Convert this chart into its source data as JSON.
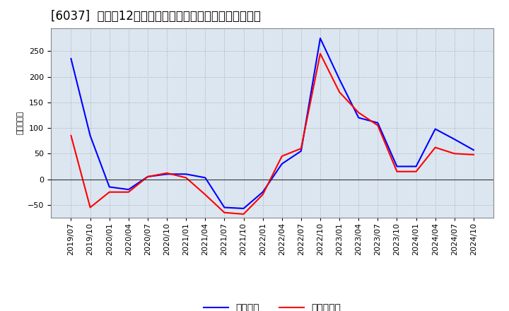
{
  "title": "[6037]  利益だ12か月移動合計の対前年同期増減額の推移",
  "ylabel": "（百万円）",
  "background_color": "#ffffff",
  "plot_background_color": "#dce6f1",
  "x_labels": [
    "2019/07",
    "2019/10",
    "2020/01",
    "2020/04",
    "2020/07",
    "2020/10",
    "2021/01",
    "2021/04",
    "2021/07",
    "2021/10",
    "2022/01",
    "2022/04",
    "2022/07",
    "2022/10",
    "2023/01",
    "2023/04",
    "2023/07",
    "2023/10",
    "2024/01",
    "2024/04",
    "2024/07",
    "2024/10"
  ],
  "operating_profit": [
    235,
    85,
    -15,
    -20,
    5,
    10,
    10,
    3,
    -55,
    -57,
    -25,
    30,
    55,
    275,
    195,
    120,
    110,
    25,
    25,
    98,
    78,
    57
  ],
  "net_profit": [
    85,
    -55,
    -25,
    -25,
    5,
    12,
    3,
    -30,
    -65,
    -68,
    -30,
    45,
    60,
    245,
    170,
    130,
    105,
    15,
    15,
    62,
    50,
    48
  ],
  "line_color_operating": "#0000ff",
  "line_color_net": "#ff0000",
  "ylim": [
    -75,
    295
  ],
  "yticks": [
    -50,
    0,
    50,
    100,
    150,
    200,
    250
  ],
  "grid_color": "#aaaaaa",
  "legend_operating": "経常利益",
  "legend_net": "当期純利益",
  "title_fontsize": 12,
  "axis_fontsize": 8,
  "legend_fontsize": 10
}
